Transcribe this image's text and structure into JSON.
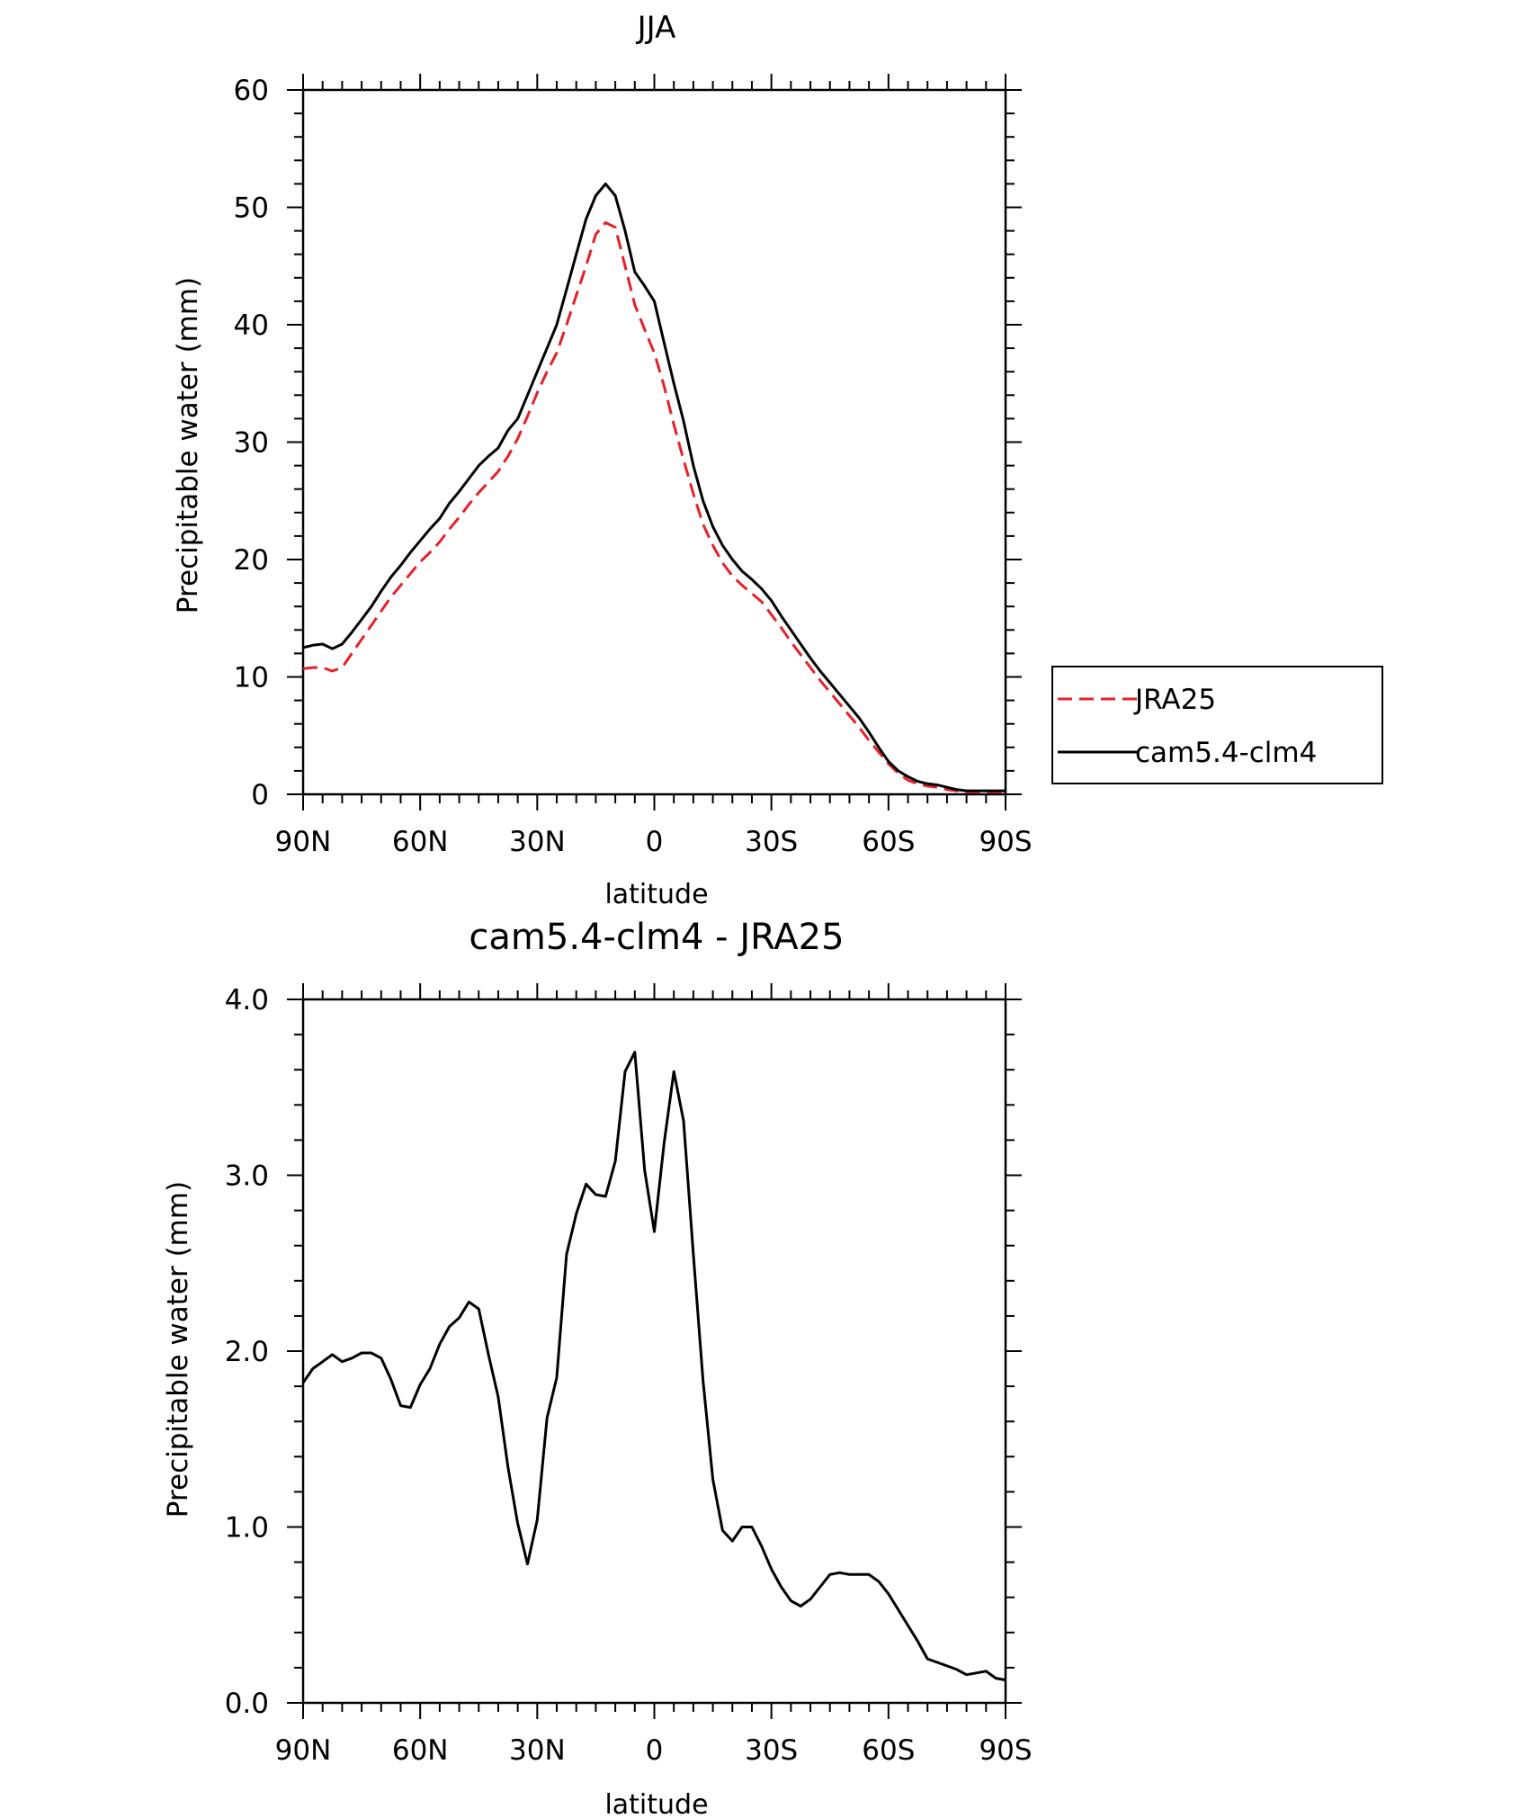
{
  "chart_data": [
    {
      "type": "line",
      "title": "JJA",
      "xlabel": "latitude",
      "ylabel": "Precipitable water (mm)",
      "xlim": [
        90,
        -90
      ],
      "ylim": [
        0,
        60
      ],
      "yticks": [
        0,
        10,
        20,
        30,
        40,
        50,
        60
      ],
      "ytick_labels": [
        "0",
        "10",
        "20",
        "30",
        "40",
        "50",
        "60"
      ],
      "xticks": [
        90,
        60,
        30,
        0,
        -30,
        -60,
        -90
      ],
      "xtick_labels": [
        "90N",
        "60N",
        "30N",
        "0",
        "30S",
        "60S",
        "90S"
      ],
      "legend_position": "right, outside plot",
      "series": [
        {
          "name": "JRA25",
          "color": "#e8202a",
          "style": "dashed",
          "x": [
            90,
            87.5,
            85,
            82.5,
            80,
            77.5,
            75,
            72.5,
            70,
            67.5,
            65,
            62.5,
            60,
            57.5,
            55,
            52.5,
            50,
            47.5,
            45,
            42.5,
            40,
            37.5,
            35,
            32.5,
            30,
            27.5,
            25,
            22.5,
            20,
            17.5,
            15,
            12.5,
            10,
            7.5,
            5,
            2.5,
            0,
            -2.5,
            -5,
            -7.5,
            -10,
            -12.5,
            -15,
            -17.5,
            -20,
            -22.5,
            -25,
            -27.5,
            -30,
            -32.5,
            -35,
            -37.5,
            -40,
            -42.5,
            -45,
            -47.5,
            -50,
            -52.5,
            -55,
            -57.5,
            -60,
            -62.5,
            -65,
            -67.5,
            -70,
            -72.5,
            -75,
            -77.5,
            -80,
            -82.5,
            -85,
            -87.5,
            -90
          ],
          "y": [
            10.7,
            10.8,
            10.8,
            10.5,
            10.8,
            12.0,
            13.2,
            14.4,
            15.6,
            16.8,
            17.8,
            18.8,
            19.8,
            20.6,
            21.5,
            22.6,
            23.6,
            24.7,
            25.7,
            26.6,
            27.5,
            28.8,
            30.3,
            32.2,
            34.2,
            36.0,
            37.6,
            40.0,
            42.5,
            45.0,
            47.7,
            48.7,
            48.3,
            45.0,
            41.7,
            39.6,
            37.6,
            34.8,
            31.5,
            28.5,
            25.6,
            23.0,
            21.2,
            19.7,
            18.6,
            17.8,
            17.1,
            16.4,
            15.3,
            14.2,
            13.0,
            11.9,
            10.8,
            9.7,
            8.7,
            7.7,
            6.7,
            5.7,
            4.6,
            3.6,
            2.6,
            1.8,
            1.2,
            0.9,
            0.7,
            0.6,
            0.4,
            0.3,
            0.2,
            0.2,
            0.2,
            0.2,
            0.2
          ]
        },
        {
          "name": "cam5.4-clm4",
          "color": "#000000",
          "style": "solid",
          "x": [
            90,
            87.5,
            85,
            82.5,
            80,
            77.5,
            75,
            72.5,
            70,
            67.5,
            65,
            62.5,
            60,
            57.5,
            55,
            52.5,
            50,
            47.5,
            45,
            42.5,
            40,
            37.5,
            35,
            32.5,
            30,
            27.5,
            25,
            22.5,
            20,
            17.5,
            15,
            12.5,
            10,
            7.5,
            5,
            2.5,
            0,
            -2.5,
            -5,
            -7.5,
            -10,
            -12.5,
            -15,
            -17.5,
            -20,
            -22.5,
            -25,
            -27.5,
            -30,
            -32.5,
            -35,
            -37.5,
            -40,
            -42.5,
            -45,
            -47.5,
            -50,
            -52.5,
            -55,
            -57.5,
            -60,
            -62.5,
            -65,
            -67.5,
            -70,
            -72.5,
            -75,
            -77.5,
            -80,
            -82.5,
            -85,
            -87.5,
            -90
          ],
          "y": [
            12.5,
            12.7,
            12.8,
            12.4,
            12.8,
            13.8,
            14.9,
            16.0,
            17.3,
            18.5,
            19.5,
            20.6,
            21.6,
            22.6,
            23.5,
            24.8,
            25.8,
            26.9,
            28.0,
            28.8,
            29.5,
            31.0,
            32.0,
            34.0,
            36.0,
            38.0,
            40.0,
            43.0,
            46.0,
            49.0,
            51.0,
            52.0,
            51.0,
            48.0,
            44.5,
            43.3,
            42.0,
            38.5,
            35.0,
            31.8,
            28.0,
            25.0,
            22.8,
            21.2,
            20.0,
            19.0,
            18.3,
            17.5,
            16.5,
            15.2,
            14.0,
            12.8,
            11.6,
            10.5,
            9.5,
            8.5,
            7.5,
            6.5,
            5.3,
            4.0,
            2.8,
            2.0,
            1.5,
            1.1,
            0.9,
            0.8,
            0.6,
            0.4,
            0.3,
            0.3,
            0.3,
            0.3,
            0.3
          ]
        }
      ]
    },
    {
      "type": "line",
      "title": "cam5.4-clm4 - JRA25",
      "xlabel": "latitude",
      "ylabel": "Precipitable water (mm)",
      "xlim": [
        90,
        -90
      ],
      "ylim": [
        0,
        4
      ],
      "yticks": [
        0,
        1,
        2,
        3,
        4
      ],
      "ytick_labels": [
        "0.0",
        "1.0",
        "2.0",
        "3.0",
        "4.0"
      ],
      "xticks": [
        90,
        60,
        30,
        0,
        -30,
        -60,
        -90
      ],
      "xtick_labels": [
        "90N",
        "60N",
        "30N",
        "0",
        "30S",
        "60S",
        "90S"
      ],
      "series": [
        {
          "color": "#000000",
          "style": "solid",
          "x": [
            90,
            87.5,
            85,
            82.5,
            80,
            77.5,
            75,
            72.5,
            70,
            67.5,
            65,
            62.5,
            60,
            57.5,
            55,
            52.5,
            50,
            47.5,
            45,
            42.5,
            40,
            37.5,
            35,
            32.5,
            30,
            27.5,
            25,
            22.5,
            20,
            17.5,
            15,
            12.5,
            10,
            7.5,
            5,
            2.5,
            0,
            -2.5,
            -5,
            -7.5,
            -10,
            -12.5,
            -15,
            -17.5,
            -20,
            -22.5,
            -25,
            -27.5,
            -30,
            -32.5,
            -35,
            -37.5,
            -40,
            -42.5,
            -45,
            -47.5,
            -50,
            -52.5,
            -55,
            -57.5,
            -60,
            -62.5,
            -65,
            -67.5,
            -70,
            -72.5,
            -75,
            -77.5,
            -80,
            -82.5,
            -85,
            -87.5,
            -90
          ],
          "y": [
            1.82,
            1.9,
            1.94,
            1.98,
            1.94,
            1.96,
            1.99,
            1.99,
            1.96,
            1.84,
            1.69,
            1.68,
            1.81,
            1.9,
            2.04,
            2.14,
            2.19,
            2.28,
            2.24,
            1.98,
            1.74,
            1.34,
            1.02,
            0.79,
            1.04,
            1.62,
            1.85,
            2.55,
            2.78,
            2.95,
            2.89,
            2.88,
            3.08,
            3.59,
            3.7,
            3.03,
            2.68,
            3.18,
            3.59,
            3.31,
            2.55,
            1.83,
            1.27,
            0.98,
            0.92,
            1.0,
            1.0,
            0.89,
            0.76,
            0.66,
            0.58,
            0.55,
            0.59,
            0.66,
            0.73,
            0.74,
            0.73,
            0.73,
            0.73,
            0.69,
            0.62,
            0.53,
            0.44,
            0.35,
            0.25,
            0.23,
            0.21,
            0.19,
            0.16,
            0.17,
            0.18,
            0.14,
            0.13
          ]
        }
      ]
    }
  ],
  "legend": {
    "items": [
      {
        "label": "JRA25",
        "color": "#e8202a",
        "style": "dashed"
      },
      {
        "label": "cam5.4-clm4",
        "color": "#000000",
        "style": "solid"
      }
    ]
  }
}
